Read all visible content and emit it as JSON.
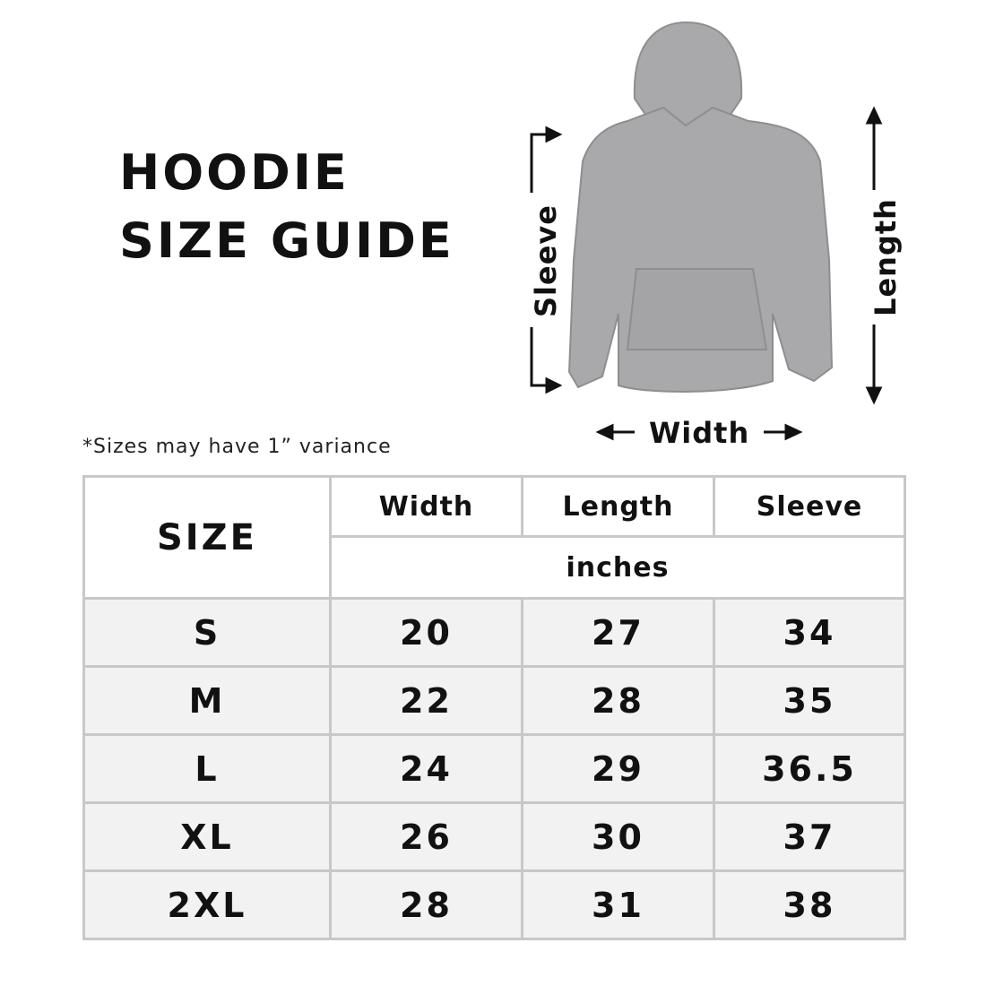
{
  "title_lines": [
    "HOODIE",
    "SIZE GUIDE"
  ],
  "note": "*Sizes may have 1” variance",
  "diagram": {
    "sleeve": "Sleeve",
    "length": "Length",
    "width": "Width",
    "garment_color": "#a9a9ab"
  },
  "table": {
    "size_header": "SIZE",
    "columns": [
      "Width",
      "Length",
      "Sleeve"
    ],
    "unit": "inches",
    "rows": [
      {
        "size": "S",
        "width": "20",
        "length": "27",
        "sleeve": "34"
      },
      {
        "size": "M",
        "width": "22",
        "length": "28",
        "sleeve": "35"
      },
      {
        "size": "L",
        "width": "24",
        "length": "29",
        "sleeve": "36.5"
      },
      {
        "size": "XL",
        "width": "26",
        "length": "30",
        "sleeve": "37"
      },
      {
        "size": "2XL",
        "width": "28",
        "length": "31",
        "sleeve": "38"
      }
    ]
  }
}
